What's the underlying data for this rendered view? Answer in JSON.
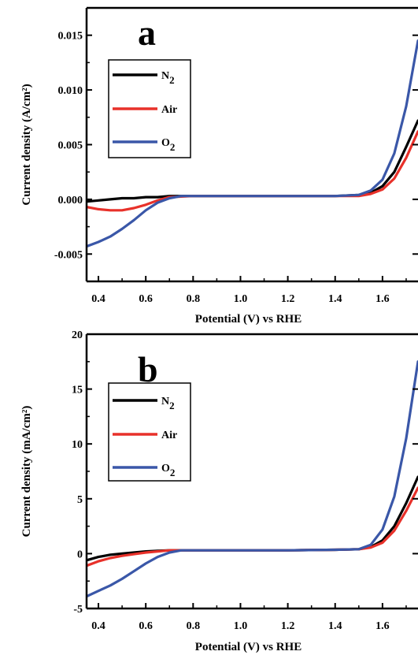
{
  "chart_data": [
    {
      "type": "line",
      "panel_label": "a",
      "xlabel": "Potential (V) vs RHE",
      "ylabel": "Current density (A/cm²)",
      "xlim": [
        0.35,
        1.75
      ],
      "ylim": [
        -0.0075,
        0.0175
      ],
      "xticks": [
        "0.4",
        "0.6",
        "0.8",
        "1.0",
        "1.2",
        "1.4",
        "1.6"
      ],
      "yticks": [
        "-0.005",
        "0.000",
        "0.005",
        "0.010",
        "0.015"
      ],
      "legend_position": "top-left",
      "grid": false,
      "series": [
        {
          "name": "N",
          "name_sub": "2",
          "color": "#000000",
          "x": [
            0.35,
            0.4,
            0.45,
            0.5,
            0.55,
            0.6,
            0.65,
            0.7,
            0.8,
            1.0,
            1.2,
            1.4,
            1.5,
            1.55,
            1.6,
            1.65,
            1.7,
            1.75
          ],
          "y": [
            -0.0002,
            -0.0001,
            0.0,
            0.0001,
            0.0001,
            0.0002,
            0.0002,
            0.0003,
            0.0003,
            0.0003,
            0.0003,
            0.0003,
            0.0004,
            0.0006,
            0.0012,
            0.0025,
            0.0048,
            0.0072
          ]
        },
        {
          "name": "Air",
          "color": "#e8312a",
          "x": [
            0.35,
            0.4,
            0.45,
            0.5,
            0.55,
            0.6,
            0.65,
            0.7,
            0.8,
            1.0,
            1.2,
            1.4,
            1.5,
            1.55,
            1.6,
            1.65,
            1.7,
            1.75
          ],
          "y": [
            -0.0007,
            -0.0009,
            -0.001,
            -0.001,
            -0.0008,
            -0.0005,
            -0.0001,
            0.0002,
            0.0003,
            0.0003,
            0.0003,
            0.0003,
            0.0003,
            0.0005,
            0.0009,
            0.0019,
            0.0038,
            0.0062
          ]
        },
        {
          "name": "O",
          "name_sub": "2",
          "color": "#3a57a8",
          "x": [
            0.35,
            0.4,
            0.45,
            0.5,
            0.55,
            0.6,
            0.65,
            0.7,
            0.75,
            0.8,
            1.0,
            1.2,
            1.4,
            1.5,
            1.55,
            1.6,
            1.65,
            1.7,
            1.75
          ],
          "y": [
            -0.0043,
            -0.0039,
            -0.0034,
            -0.0027,
            -0.0019,
            -0.001,
            -0.0003,
            0.0001,
            0.0003,
            0.0003,
            0.0003,
            0.0003,
            0.0003,
            0.0004,
            0.0008,
            0.0018,
            0.0042,
            0.0085,
            0.0145
          ]
        }
      ]
    },
    {
      "type": "line",
      "panel_label": "b",
      "xlabel": "Potential (V) vs RHE",
      "ylabel": "Current density (mA/cm²)",
      "xlim": [
        0.35,
        1.75
      ],
      "ylim": [
        -5,
        20
      ],
      "xticks": [
        "0.4",
        "0.6",
        "0.8",
        "1.0",
        "1.2",
        "1.4",
        "1.6"
      ],
      "yticks": [
        "-5",
        "0",
        "5",
        "10",
        "15",
        "20"
      ],
      "legend_position": "top-left",
      "grid": false,
      "series": [
        {
          "name": "N",
          "name_sub": "2",
          "color": "#000000",
          "x": [
            0.35,
            0.4,
            0.45,
            0.5,
            0.55,
            0.6,
            0.65,
            0.7,
            0.8,
            1.0,
            1.2,
            1.4,
            1.5,
            1.55,
            1.6,
            1.65,
            1.7,
            1.75
          ],
          "y": [
            -0.6,
            -0.3,
            -0.1,
            0.0,
            0.1,
            0.2,
            0.25,
            0.3,
            0.3,
            0.3,
            0.3,
            0.35,
            0.4,
            0.6,
            1.2,
            2.5,
            4.6,
            7.0
          ]
        },
        {
          "name": "Air",
          "color": "#e8312a",
          "x": [
            0.35,
            0.4,
            0.45,
            0.5,
            0.55,
            0.6,
            0.65,
            0.7,
            0.8,
            1.0,
            1.2,
            1.4,
            1.5,
            1.55,
            1.6,
            1.65,
            1.7,
            1.75
          ],
          "y": [
            -1.1,
            -0.7,
            -0.4,
            -0.2,
            -0.05,
            0.1,
            0.2,
            0.3,
            0.3,
            0.3,
            0.3,
            0.35,
            0.4,
            0.55,
            1.0,
            2.1,
            3.9,
            6.0
          ]
        },
        {
          "name": "O",
          "name_sub": "2",
          "color": "#3a57a8",
          "x": [
            0.35,
            0.4,
            0.45,
            0.5,
            0.55,
            0.6,
            0.65,
            0.7,
            0.75,
            0.8,
            1.0,
            1.2,
            1.4,
            1.5,
            1.55,
            1.6,
            1.65,
            1.7,
            1.75
          ],
          "y": [
            -3.9,
            -3.4,
            -2.9,
            -2.3,
            -1.6,
            -0.9,
            -0.3,
            0.1,
            0.3,
            0.3,
            0.3,
            0.3,
            0.35,
            0.4,
            0.8,
            2.2,
            5.2,
            10.5,
            17.5
          ]
        }
      ]
    }
  ]
}
